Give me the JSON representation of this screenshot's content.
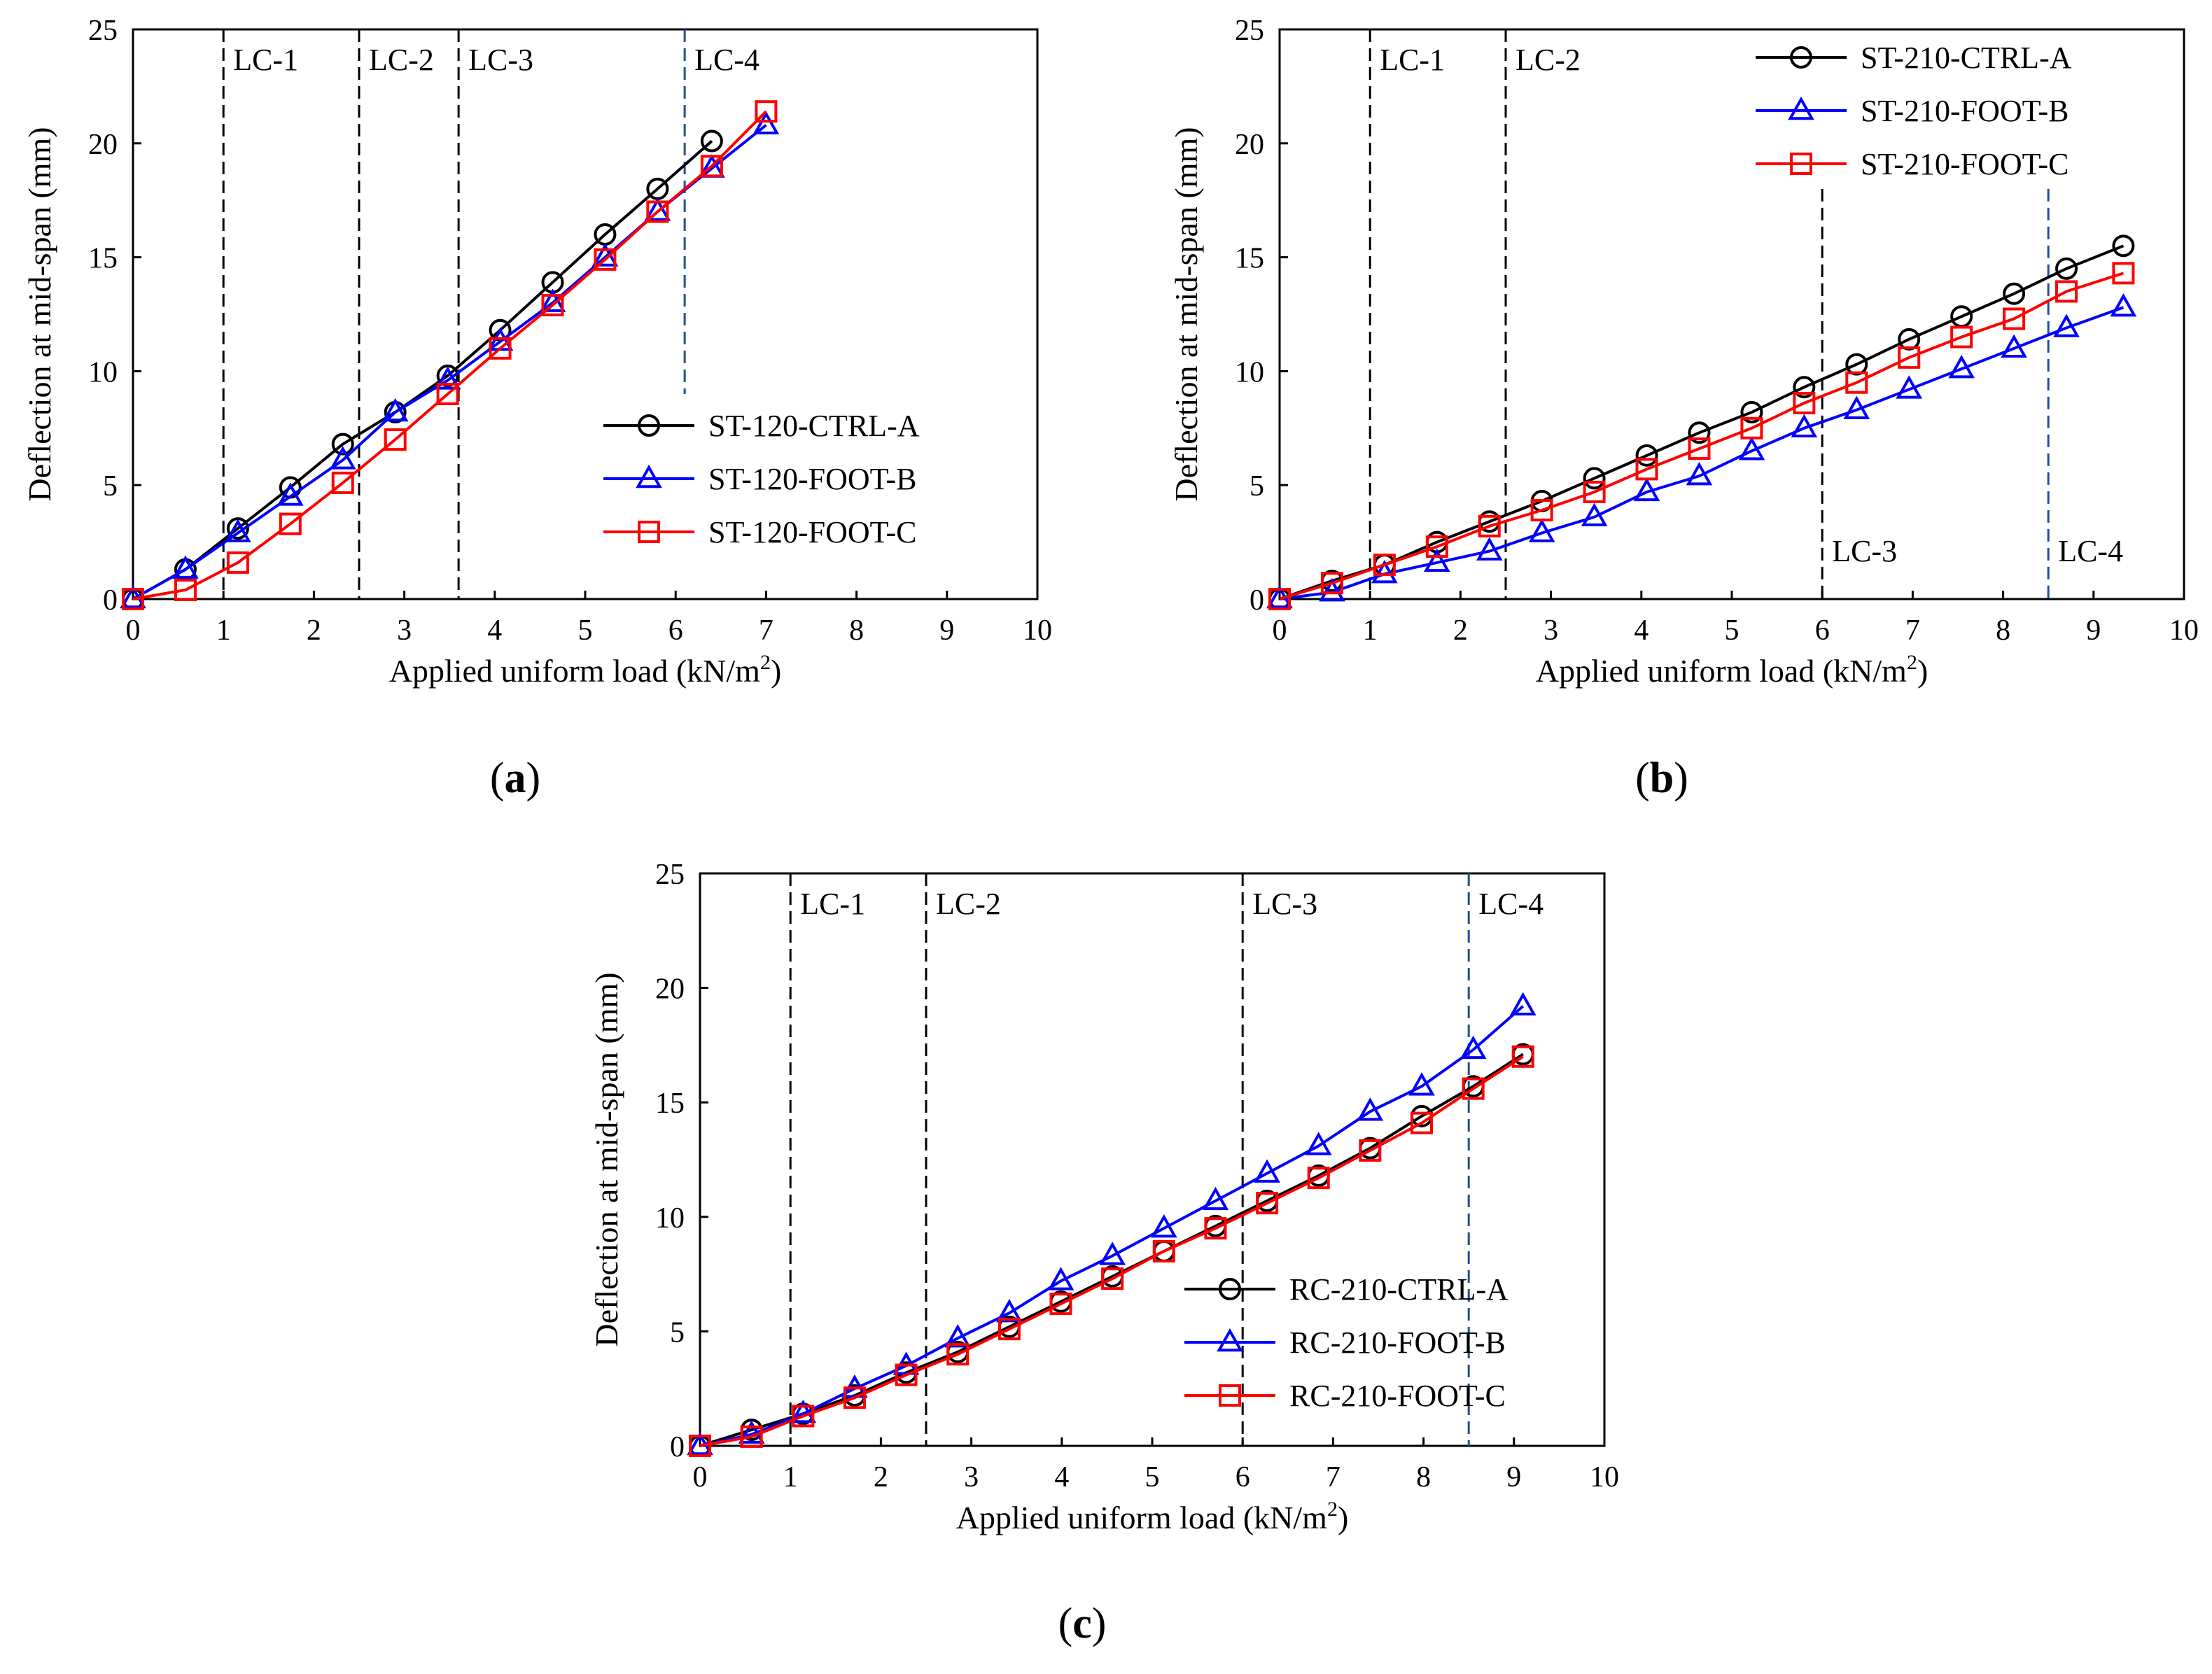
{
  "figure": {
    "panel_labels": [
      "a",
      "b",
      "c"
    ]
  },
  "chart_data": [
    {
      "type": "line",
      "panel": "a",
      "xlabel": "Applied uniform load (kN/m",
      "xlabel_sup": "2",
      "xlabel_close": ")",
      "ylabel": "Deflection at mid-span (mm)",
      "xlim": [
        0,
        10
      ],
      "ylim": [
        0,
        25
      ],
      "xticks": [
        0,
        1,
        2,
        3,
        4,
        5,
        6,
        7,
        8,
        9,
        10
      ],
      "yticks": [
        0,
        5,
        10,
        15,
        20,
        25
      ],
      "legend_position": "bottom-right",
      "load_cases": [
        {
          "label": "LC-1",
          "x": 1.0,
          "style": "black",
          "label_pos": "top"
        },
        {
          "label": "LC-2",
          "x": 2.5,
          "style": "black",
          "label_pos": "top"
        },
        {
          "label": "LC-3",
          "x": 3.6,
          "style": "black",
          "label_pos": "top"
        },
        {
          "label": "LC-4",
          "x": 6.1,
          "style": "blue",
          "label_pos": "top",
          "y_range": [
            9,
            25
          ]
        }
      ],
      "series": [
        {
          "name": "ST-120-CTRL-A",
          "color": "#000000",
          "marker": "circle",
          "x": [
            0,
            0.58,
            1.16,
            1.74,
            2.32,
            2.9,
            3.48,
            4.06,
            4.64,
            5.22,
            5.8,
            6.4
          ],
          "y": [
            0,
            1.3,
            3.1,
            4.9,
            6.8,
            8.2,
            9.8,
            11.8,
            13.9,
            16.0,
            18.0,
            20.1
          ]
        },
        {
          "name": "ST-120-FOOT-B",
          "color": "#0000ff",
          "marker": "triangle",
          "x": [
            0,
            0.58,
            1.16,
            1.74,
            2.32,
            2.9,
            3.48,
            4.06,
            4.64,
            5.22,
            5.8,
            6.4,
            7.0
          ],
          "y": [
            0,
            1.3,
            2.9,
            4.5,
            6.1,
            8.2,
            9.6,
            11.3,
            13.0,
            15.0,
            17.0,
            18.9,
            20.8
          ]
        },
        {
          "name": "ST-120-FOOT-C",
          "color": "#ff0000",
          "marker": "square",
          "x": [
            0,
            0.58,
            1.16,
            1.74,
            2.32,
            2.9,
            3.48,
            4.06,
            4.64,
            5.22,
            5.8,
            6.4,
            7.0
          ],
          "y": [
            0,
            0.4,
            1.6,
            3.3,
            5.1,
            7.0,
            9.0,
            11.0,
            12.9,
            14.9,
            17.0,
            19.0,
            21.4
          ]
        }
      ]
    },
    {
      "type": "line",
      "panel": "b",
      "xlabel": "Applied uniform load (kN/m",
      "xlabel_sup": "2",
      "xlabel_close": ")",
      "ylabel": "Deflection at mid-span (mm)",
      "xlim": [
        0,
        10
      ],
      "ylim": [
        0,
        25
      ],
      "xticks": [
        0,
        1,
        2,
        3,
        4,
        5,
        6,
        7,
        8,
        9,
        10
      ],
      "yticks": [
        0,
        5,
        10,
        15,
        20,
        25
      ],
      "legend_position": "top-right",
      "load_cases": [
        {
          "label": "LC-1",
          "x": 1.0,
          "style": "black",
          "label_pos": "top"
        },
        {
          "label": "LC-2",
          "x": 2.5,
          "style": "black",
          "label_pos": "top"
        },
        {
          "label": "LC-3",
          "x": 6.0,
          "style": "black",
          "label_pos": "bottom",
          "y_range": [
            0,
            18
          ]
        },
        {
          "label": "LC-4",
          "x": 8.5,
          "style": "blue",
          "label_pos": "bottom",
          "y_range": [
            0,
            18
          ]
        }
      ],
      "series": [
        {
          "name": "ST-210-CTRL-A",
          "color": "#000000",
          "marker": "circle",
          "x": [
            0,
            0.58,
            1.16,
            1.74,
            2.32,
            2.9,
            3.48,
            4.06,
            4.64,
            5.22,
            5.8,
            6.38,
            6.96,
            7.54,
            8.12,
            8.7,
            9.33
          ],
          "y": [
            0,
            0.8,
            1.5,
            2.5,
            3.4,
            4.3,
            5.3,
            6.3,
            7.3,
            8.2,
            9.3,
            10.3,
            11.4,
            12.4,
            13.4,
            14.5,
            15.5
          ]
        },
        {
          "name": "ST-210-FOOT-B",
          "color": "#0000ff",
          "marker": "triangle",
          "x": [
            0,
            0.58,
            1.16,
            1.74,
            2.32,
            2.9,
            3.48,
            4.06,
            4.64,
            5.22,
            5.8,
            6.38,
            6.96,
            7.54,
            8.12,
            8.7,
            9.33
          ],
          "y": [
            0,
            0.3,
            1.1,
            1.6,
            2.1,
            2.9,
            3.6,
            4.7,
            5.4,
            6.5,
            7.5,
            8.3,
            9.2,
            10.1,
            11.0,
            11.9,
            12.8
          ]
        },
        {
          "name": "ST-210-FOOT-C",
          "color": "#ff0000",
          "marker": "square",
          "x": [
            0,
            0.58,
            1.16,
            1.74,
            2.32,
            2.9,
            3.48,
            4.06,
            4.64,
            5.22,
            5.8,
            6.38,
            6.96,
            7.54,
            8.12,
            8.7,
            9.33
          ],
          "y": [
            0,
            0.7,
            1.5,
            2.3,
            3.2,
            3.9,
            4.7,
            5.7,
            6.6,
            7.5,
            8.6,
            9.5,
            10.6,
            11.5,
            12.3,
            13.5,
            14.3
          ]
        }
      ]
    },
    {
      "type": "line",
      "panel": "c",
      "xlabel": "Applied uniform load (kN/m",
      "xlabel_sup": "2",
      "xlabel_close": ")",
      "ylabel": "Deflection at mid-span (mm)",
      "xlim": [
        0,
        10
      ],
      "ylim": [
        0,
        25
      ],
      "xticks": [
        0,
        1,
        2,
        3,
        4,
        5,
        6,
        7,
        8,
        9,
        10
      ],
      "yticks": [
        0,
        5,
        10,
        15,
        20,
        25
      ],
      "legend_position": "bottom-right",
      "load_cases": [
        {
          "label": "LC-1",
          "x": 1.0,
          "style": "black",
          "label_pos": "top"
        },
        {
          "label": "LC-2",
          "x": 2.5,
          "style": "black",
          "label_pos": "top"
        },
        {
          "label": "LC-3",
          "x": 6.0,
          "style": "black",
          "label_pos": "top"
        },
        {
          "label": "LC-4",
          "x": 8.5,
          "style": "blue",
          "label_pos": "top"
        }
      ],
      "series": [
        {
          "name": "RC-210-CTRL-A",
          "color": "#000000",
          "marker": "circle",
          "x": [
            0,
            0.57,
            1.14,
            1.71,
            2.28,
            2.85,
            3.42,
            3.99,
            4.56,
            5.13,
            5.7,
            6.27,
            6.84,
            7.41,
            7.98,
            8.55,
            9.1
          ],
          "y": [
            0,
            0.7,
            1.4,
            2.2,
            3.2,
            4.1,
            5.2,
            6.3,
            7.4,
            8.5,
            9.6,
            10.7,
            11.8,
            13.0,
            14.4,
            15.7,
            17.1
          ]
        },
        {
          "name": "RC-210-FOOT-B",
          "color": "#0000ff",
          "marker": "triangle",
          "x": [
            0,
            0.57,
            1.14,
            1.71,
            2.28,
            2.85,
            3.42,
            3.99,
            4.56,
            5.13,
            5.7,
            6.27,
            6.84,
            7.41,
            7.98,
            8.55,
            9.1
          ],
          "y": [
            0,
            0.5,
            1.4,
            2.5,
            3.5,
            4.7,
            5.8,
            7.2,
            8.3,
            9.5,
            10.7,
            11.9,
            13.1,
            14.6,
            15.7,
            17.3,
            19.2
          ]
        },
        {
          "name": "RC-210-FOOT-C",
          "color": "#ff0000",
          "marker": "square",
          "x": [
            0,
            0.57,
            1.14,
            1.71,
            2.28,
            2.85,
            3.42,
            3.99,
            4.56,
            5.13,
            5.7,
            6.27,
            6.84,
            7.41,
            7.98,
            8.55,
            9.1
          ],
          "y": [
            0,
            0.4,
            1.3,
            2.1,
            3.1,
            4.0,
            5.1,
            6.2,
            7.3,
            8.5,
            9.5,
            10.6,
            11.7,
            12.9,
            14.1,
            15.6,
            17.0
          ]
        }
      ]
    }
  ]
}
